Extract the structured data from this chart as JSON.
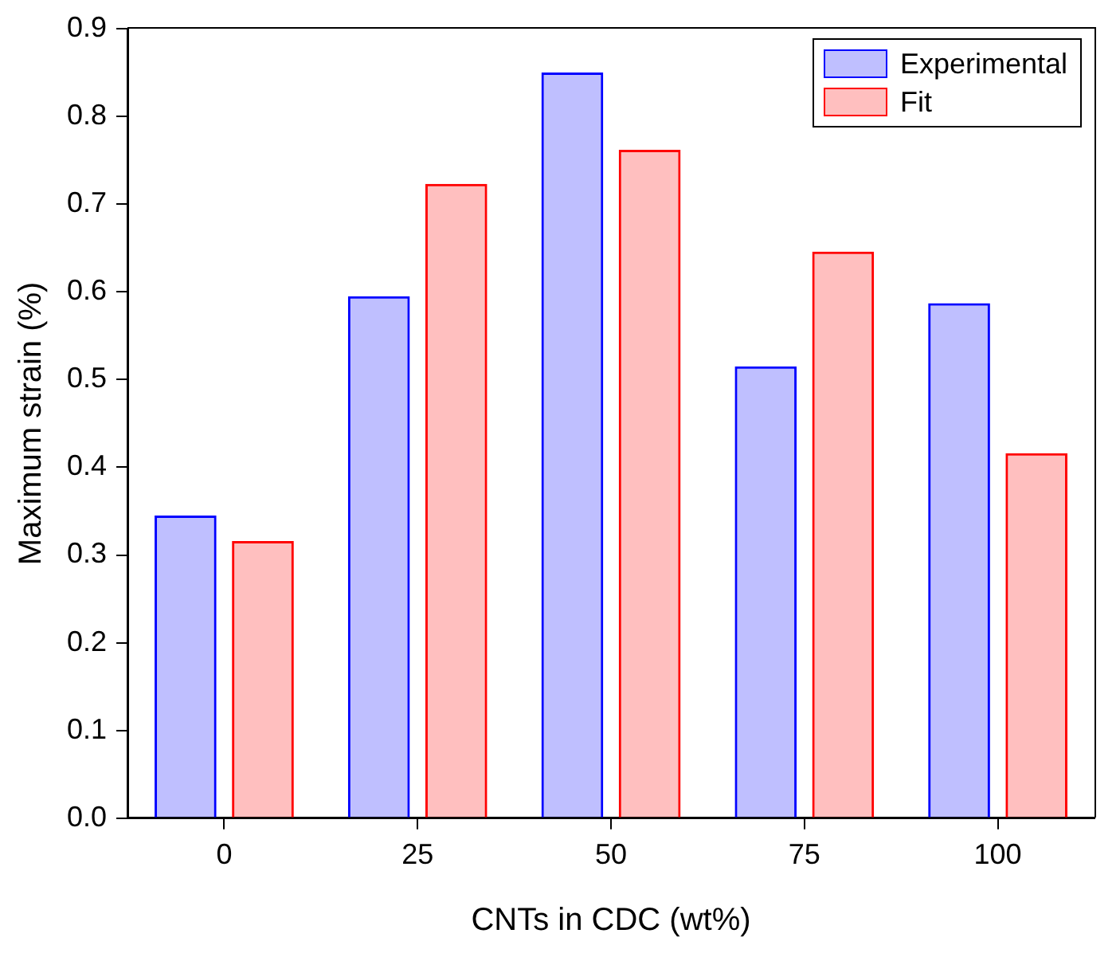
{
  "chart_data": {
    "type": "bar",
    "xlabel": "CNTs in CDC (wt%)",
    "ylabel": "Maximum strain (%)",
    "categories": [
      "0",
      "25",
      "50",
      "75",
      "100"
    ],
    "series": [
      {
        "name": "Experimental",
        "color": "#0000ff",
        "values": [
          0.345,
          0.595,
          0.85,
          0.515,
          0.587
        ]
      },
      {
        "name": "Fit",
        "color": "#ff0000",
        "values": [
          0.316,
          0.723,
          0.762,
          0.646,
          0.416
        ]
      }
    ],
    "ylim": [
      0,
      0.9
    ],
    "yticks": [
      {
        "value": 0,
        "label": "0.0"
      },
      {
        "value": 0.1,
        "label": "0.1"
      },
      {
        "value": 0.2,
        "label": "0.2"
      },
      {
        "value": 0.3,
        "label": "0.3"
      },
      {
        "value": 0.4,
        "label": "0.4"
      },
      {
        "value": 0.5,
        "label": "0.5"
      },
      {
        "value": 0.6,
        "label": "0.6"
      },
      {
        "value": 0.7,
        "label": "0.7"
      },
      {
        "value": 0.8,
        "label": "0.8"
      },
      {
        "value": 0.9,
        "label": "0.9"
      }
    ],
    "grid": false,
    "legend": "top right"
  }
}
